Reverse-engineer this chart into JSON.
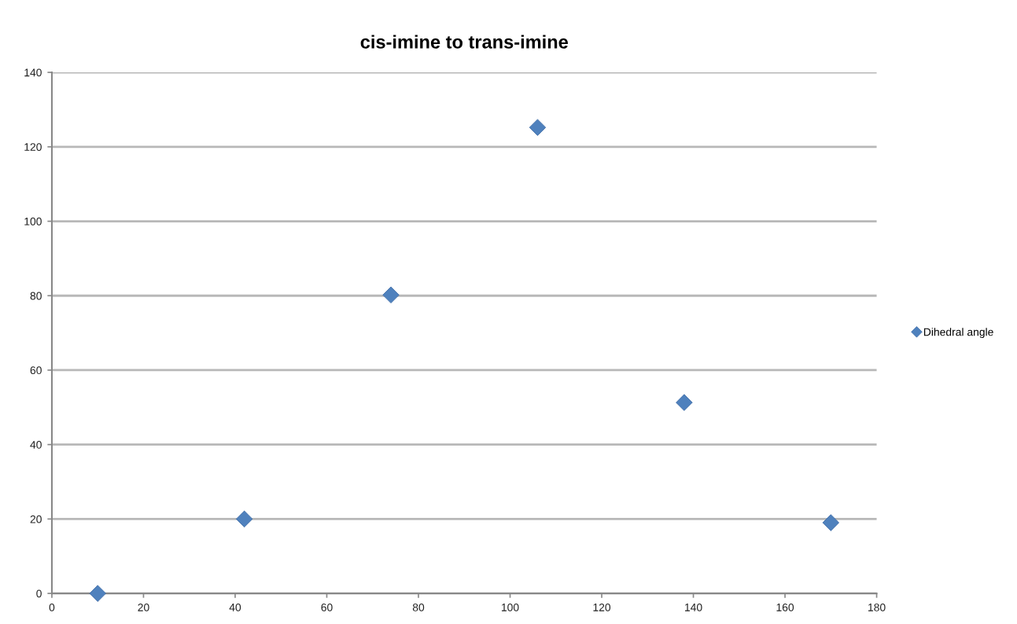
{
  "chart_data": {
    "type": "scatter",
    "title": "cis-imine to trans-imine",
    "series": [
      {
        "name": "Dihedral angle",
        "color": "#4f81bd",
        "x": [
          10,
          42,
          74,
          106,
          138,
          170
        ],
        "values": [
          0,
          20,
          80.2,
          125.2,
          51.3,
          19.0
        ]
      }
    ],
    "xlim": [
      0,
      180
    ],
    "xticks": [
      0,
      20,
      40,
      60,
      80,
      100,
      120,
      140,
      160,
      180
    ],
    "ylim": [
      0,
      140
    ],
    "yticks": [
      0,
      20,
      40,
      60,
      80,
      100,
      120,
      140
    ],
    "grid": "y",
    "legend": "right",
    "marker": "diamond"
  }
}
